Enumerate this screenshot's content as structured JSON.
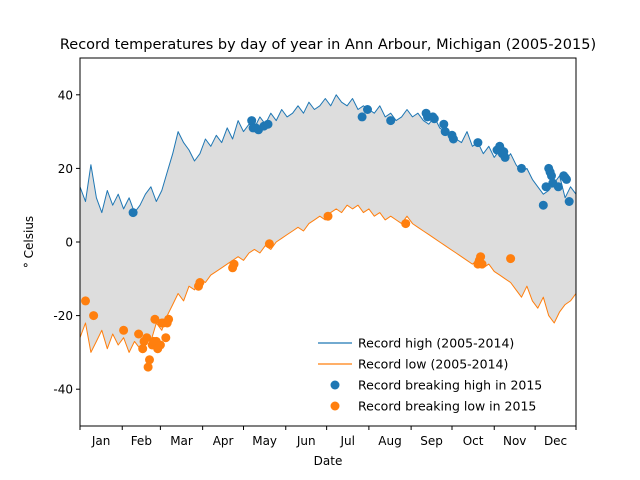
{
  "chart_data": {
    "type": "line",
    "title": "Record temperatures by day of year in Ann Arbour, Michigan (2005-2015)",
    "xlabel": "Date",
    "ylabel": "° Celsius",
    "xlim": [
      1,
      365
    ],
    "ylim": [
      -50,
      50
    ],
    "yticks": [
      -40,
      -20,
      0,
      20,
      40
    ],
    "month_labels": [
      "Jan",
      "Feb",
      "Mar",
      "Apr",
      "May",
      "Jun",
      "Jul",
      "Aug",
      "Sep",
      "Oct",
      "Nov",
      "Dec"
    ],
    "fill_between": {
      "color": "#dddddd"
    },
    "legend": {
      "position": "lower-right",
      "entries": [
        {
          "label": "Record high (2005-2014)",
          "type": "line",
          "color": "#1f77b4"
        },
        {
          "label": "Record low (2005-2014)",
          "type": "line",
          "color": "#ff7f0e"
        },
        {
          "label": "Record breaking high in 2015",
          "type": "marker",
          "color": "#1f77b4"
        },
        {
          "label": "Record breaking low in 2015",
          "type": "marker",
          "color": "#ff7f0e"
        }
      ]
    },
    "series": [
      {
        "name": "Record high (2005-2014)",
        "color": "#1f77b4",
        "day": [
          1,
          5,
          9,
          13,
          17,
          21,
          25,
          29,
          33,
          37,
          41,
          45,
          49,
          53,
          57,
          61,
          65,
          69,
          73,
          77,
          81,
          85,
          89,
          93,
          97,
          101,
          105,
          109,
          113,
          117,
          121,
          125,
          129,
          133,
          137,
          141,
          145,
          149,
          153,
          157,
          161,
          165,
          169,
          173,
          177,
          181,
          185,
          189,
          193,
          197,
          201,
          205,
          209,
          213,
          217,
          221,
          225,
          229,
          233,
          237,
          241,
          245,
          249,
          253,
          257,
          261,
          265,
          269,
          273,
          277,
          281,
          285,
          289,
          293,
          297,
          301,
          305,
          309,
          313,
          317,
          321,
          325,
          329,
          333,
          337,
          341,
          345,
          349,
          353,
          357,
          361,
          365
        ],
        "values": [
          15,
          11,
          21,
          12,
          8,
          14,
          10,
          13,
          9,
          12,
          8,
          10,
          13,
          15,
          11,
          14,
          19,
          24,
          30,
          27,
          25,
          22,
          24,
          28,
          26,
          29,
          27,
          31,
          28,
          33,
          30,
          32,
          31,
          34,
          32,
          35,
          33,
          36,
          34,
          35,
          37,
          35,
          38,
          36,
          37,
          39,
          37,
          40,
          38,
          37,
          39,
          36,
          37,
          36,
          35,
          37,
          34,
          35,
          33,
          34,
          36,
          34,
          35,
          33,
          32,
          34,
          31,
          30,
          29,
          28,
          27,
          30,
          26,
          27,
          24,
          26,
          23,
          25,
          22,
          24,
          21,
          19,
          20,
          17,
          15,
          13,
          14,
          16,
          18,
          12,
          15,
          13
        ]
      },
      {
        "name": "Record low (2005-2014)",
        "color": "#ff7f0e",
        "day": [
          1,
          5,
          9,
          13,
          17,
          21,
          25,
          29,
          33,
          37,
          41,
          45,
          49,
          53,
          57,
          61,
          65,
          69,
          73,
          77,
          81,
          85,
          89,
          93,
          97,
          101,
          105,
          109,
          113,
          117,
          121,
          125,
          129,
          133,
          137,
          141,
          145,
          149,
          153,
          157,
          161,
          165,
          169,
          173,
          177,
          181,
          185,
          189,
          193,
          197,
          201,
          205,
          209,
          213,
          217,
          221,
          225,
          229,
          233,
          237,
          241,
          245,
          249,
          253,
          257,
          261,
          265,
          269,
          273,
          277,
          281,
          285,
          289,
          293,
          297,
          301,
          305,
          309,
          313,
          317,
          321,
          325,
          329,
          333,
          337,
          341,
          345,
          349,
          353,
          357,
          361,
          365
        ],
        "values": [
          -26,
          -22,
          -30,
          -27,
          -24,
          -29,
          -25,
          -28,
          -26,
          -30,
          -27,
          -29,
          -25,
          -27,
          -22,
          -24,
          -20,
          -17,
          -14,
          -16,
          -12,
          -13,
          -10,
          -11,
          -9,
          -8,
          -7,
          -6,
          -5,
          -4,
          -5,
          -3,
          -2,
          -3,
          -1,
          -2,
          0,
          1,
          2,
          3,
          4,
          3,
          5,
          6,
          7,
          6,
          8,
          9,
          8,
          10,
          9,
          10,
          8,
          9,
          7,
          8,
          6,
          7,
          6,
          5,
          7,
          5,
          4,
          3,
          2,
          1,
          0,
          -1,
          -2,
          -3,
          -4,
          -5,
          -6,
          -5,
          -7,
          -6,
          -8,
          -9,
          -10,
          -11,
          -13,
          -15,
          -12,
          -16,
          -18,
          -15,
          -20,
          -22,
          -19,
          -17,
          -16,
          -14
        ]
      },
      {
        "name": "Record breaking high in 2015",
        "color": "#1f77b4",
        "type": "scatter",
        "day": [
          40,
          127,
          128,
          130,
          132,
          136,
          139,
          208,
          212,
          229,
          255,
          256,
          260,
          261,
          268,
          269,
          274,
          275,
          293,
          307,
          309,
          310,
          311,
          312,
          313,
          325,
          341,
          343,
          345,
          346,
          347,
          348,
          352,
          356,
          357,
          358,
          360
        ],
        "values": [
          8,
          33,
          31,
          31,
          30.5,
          31.5,
          32,
          34,
          36,
          33,
          35,
          34,
          34,
          33.5,
          32,
          30,
          29,
          28,
          27,
          25,
          26,
          25,
          24,
          24.5,
          23,
          20,
          10,
          15,
          20,
          19,
          18,
          16,
          15,
          18,
          17.5,
          17,
          11
        ]
      },
      {
        "name": "Record breaking low in 2015",
        "color": "#ff7f0e",
        "type": "scatter",
        "day": [
          5,
          11,
          33,
          44,
          47,
          48,
          50,
          51,
          52,
          54,
          55,
          56,
          57,
          58,
          60,
          61,
          62,
          64,
          65,
          66,
          88,
          89,
          113,
          114,
          140,
          183,
          240,
          293,
          294,
          295,
          296,
          317
        ],
        "values": [
          -16,
          -20,
          -24,
          -25,
          -29,
          -27,
          -26,
          -34,
          -32,
          -28,
          -27,
          -21,
          -27,
          -29,
          -28,
          -22,
          -22,
          -26,
          -22,
          -21,
          -12,
          -11,
          -7,
          -6,
          -0.5,
          7,
          5,
          -6,
          -5,
          -4,
          -6,
          -4.5
        ]
      }
    ]
  }
}
